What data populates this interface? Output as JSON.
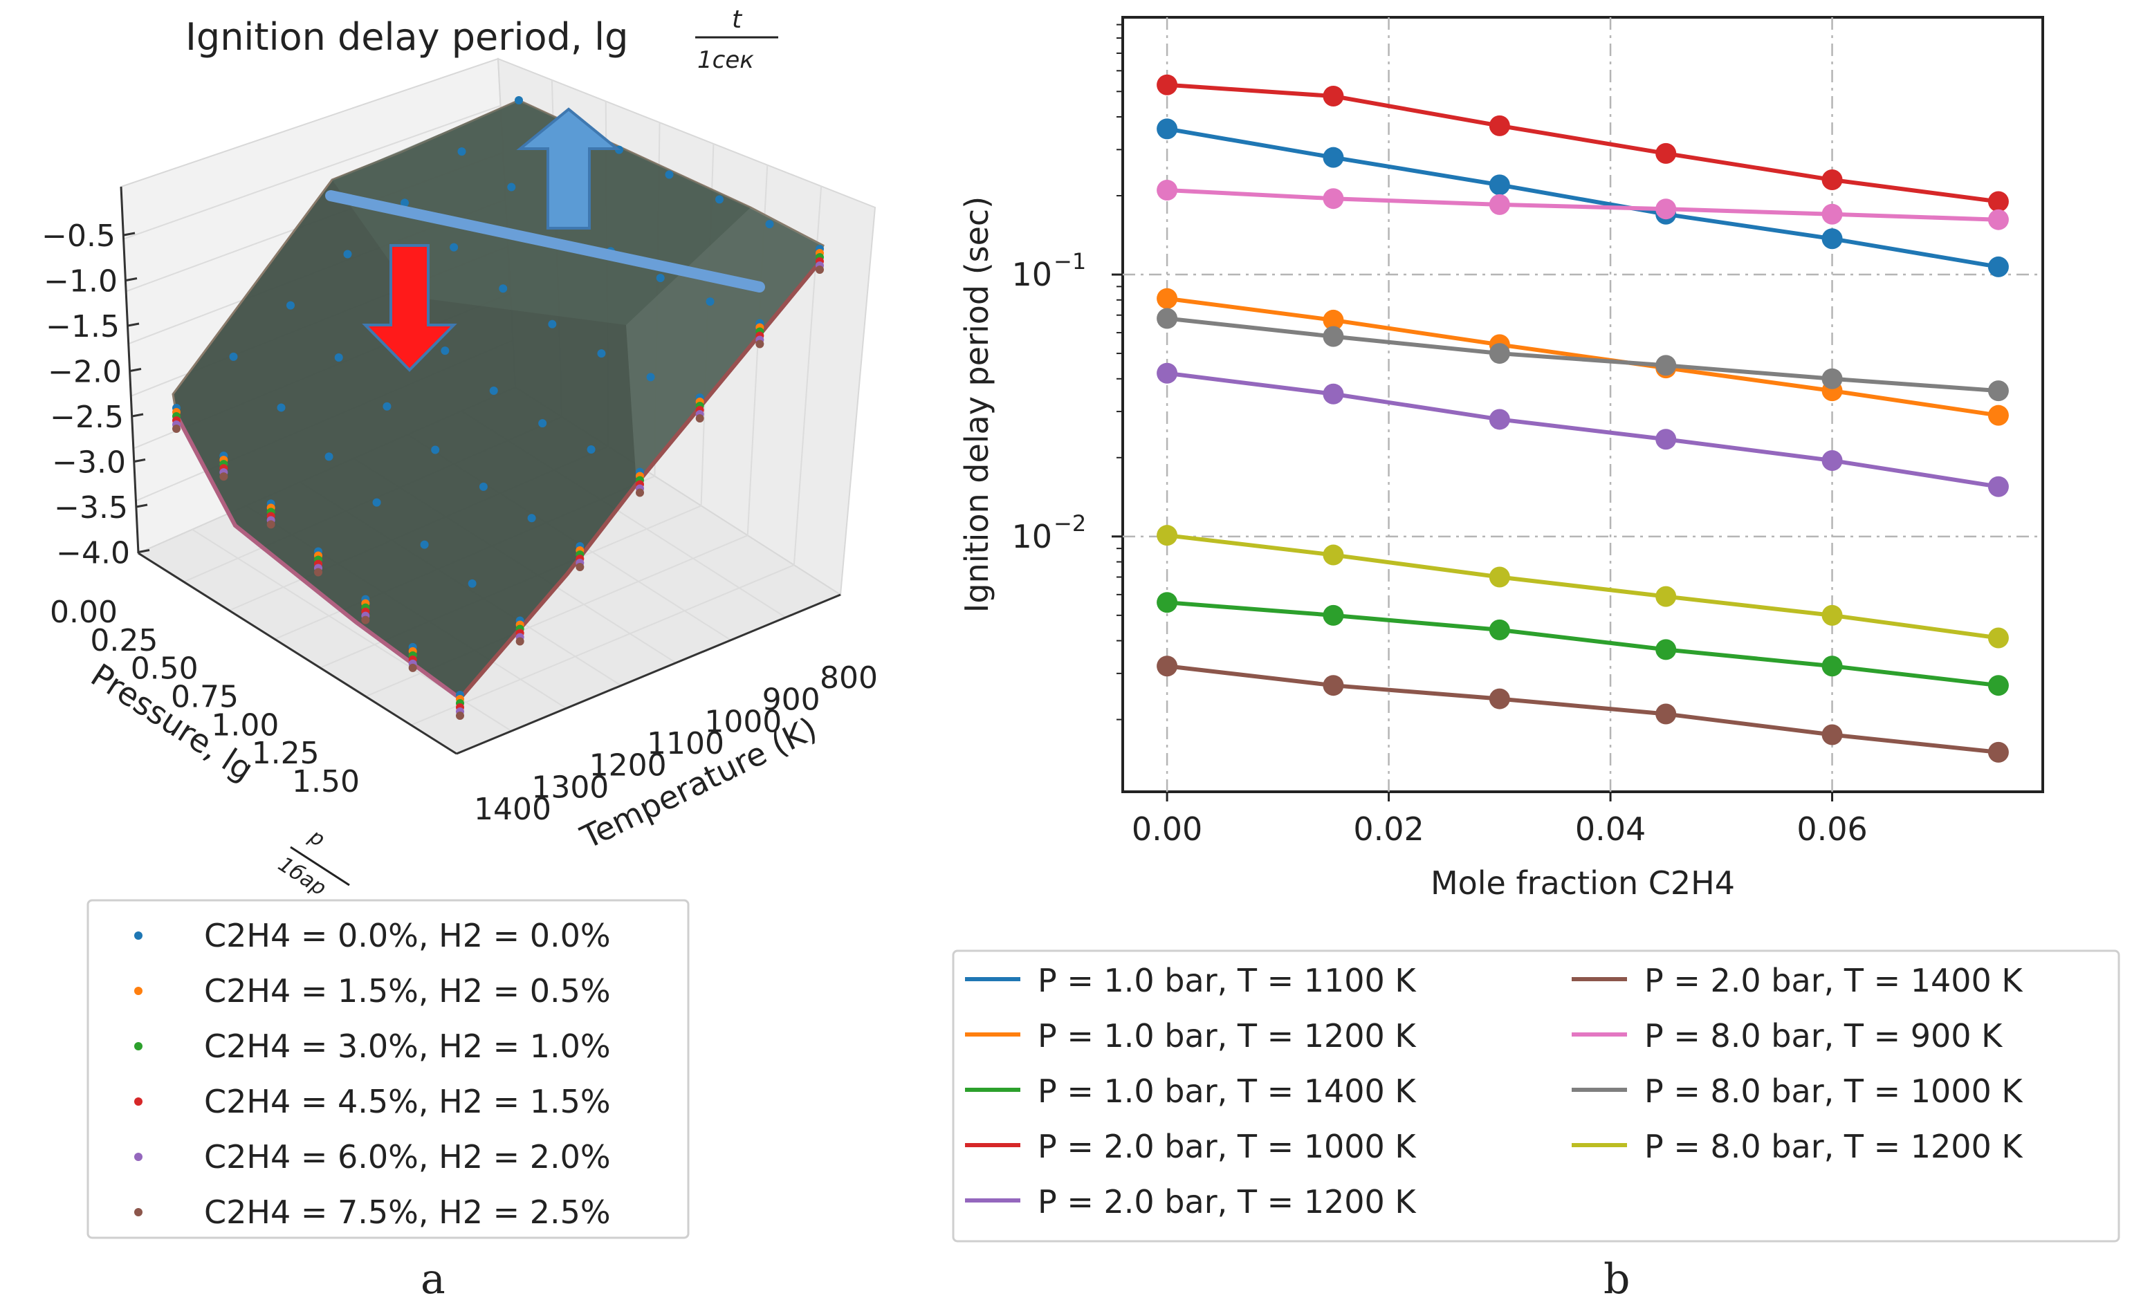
{
  "panel_labels": {
    "a": "a",
    "b": "b"
  },
  "chart_data": [
    {
      "type": "scatter",
      "projection": "3d-surface",
      "title": "Ignition delay period, lg",
      "title_fraction": {
        "numerator": "t",
        "denominator": "1сек"
      },
      "xlabel": "Pressure, lg",
      "xlabel_fraction": {
        "numerator": "p",
        "denominator": "1бар"
      },
      "ylabel": "Temperature (K)",
      "z_ticks": [
        "−0.5",
        "−1.0",
        "−1.5",
        "−2.0",
        "−2.5",
        "−3.0",
        "−3.5",
        "−4.0"
      ],
      "pressure_ticks": [
        "0.00",
        "0.25",
        "0.50",
        "0.75",
        "1.00",
        "1.25",
        "1.50"
      ],
      "temperature_ticks": [
        "800",
        "900",
        "1000",
        "1100",
        "1200",
        "1300",
        "1400"
      ],
      "pressure_values": [
        0.0,
        0.25,
        0.5,
        0.75,
        1.0,
        1.25,
        1.5
      ],
      "temperature_values": [
        800,
        900,
        1000,
        1100,
        1200,
        1300,
        1400
      ],
      "zlim": [
        -4.0,
        -0.5
      ],
      "series": [
        {
          "name": "C2H4 = 0.0%, H2 = 0.0%",
          "color": "#1f77b4"
        },
        {
          "name": "C2H4 = 1.5%, H2 = 0.5%",
          "color": "#ff7f0e"
        },
        {
          "name": "C2H4 = 3.0%, H2 = 1.0%",
          "color": "#2ca02c"
        },
        {
          "name": "C2H4 = 4.5%, H2 = 1.5%",
          "color": "#d62728"
        },
        {
          "name": "C2H4 = 6.0%, H2 = 2.0%",
          "color": "#9467bd"
        },
        {
          "name": "C2H4 = 7.5%, H2 =  2.5%",
          "color": "#8c564b"
        }
      ],
      "annotations": [
        {
          "kind": "line",
          "color": "#6a9fd8"
        },
        {
          "kind": "arrow-up",
          "color": "#5b9bd5"
        },
        {
          "kind": "arrow-down",
          "color": "#ff1a1a"
        }
      ]
    },
    {
      "type": "line",
      "xlabel": "Mole fraction C2H4",
      "ylabel": "Ignition delay period (sec)",
      "yscale": "log",
      "xlim": [
        -0.004,
        0.079
      ],
      "ylim": [
        0.00106,
        0.96
      ],
      "x": [
        0.0,
        0.015,
        0.03,
        0.045,
        0.06,
        0.075
      ],
      "x_ticks": [
        "0.00",
        "0.02",
        "0.04",
        "0.06"
      ],
      "x_tick_values": [
        0.0,
        0.02,
        0.04,
        0.06
      ],
      "y_ticks": [
        {
          "value": 0.1,
          "base": "10",
          "exp": "−1"
        },
        {
          "value": 0.01,
          "base": "10",
          "exp": "−2"
        }
      ],
      "grid": true,
      "series": [
        {
          "name": "P = 1.0 bar, T = 1100 K",
          "color": "#1f77b4",
          "values": [
            0.36,
            0.28,
            0.22,
            0.17,
            0.137,
            0.107
          ]
        },
        {
          "name": "P = 1.0 bar, T = 1200 K",
          "color": "#ff7f0e",
          "values": [
            0.081,
            0.067,
            0.054,
            0.044,
            0.036,
            0.029
          ]
        },
        {
          "name": "P = 1.0 bar, T = 1400 K",
          "color": "#2ca02c",
          "values": [
            0.0056,
            0.005,
            0.0044,
            0.0037,
            0.0032,
            0.0027
          ]
        },
        {
          "name": "P = 2.0 bar, T = 1000 K",
          "color": "#d62728",
          "values": [
            0.53,
            0.48,
            0.37,
            0.29,
            0.23,
            0.19
          ]
        },
        {
          "name": "P = 2.0 bar, T = 1200 K",
          "color": "#9467bd",
          "values": [
            0.042,
            0.035,
            0.028,
            0.0235,
            0.0195,
            0.0155
          ]
        },
        {
          "name": "P = 2.0 bar, T = 1400 K",
          "color": "#8c564b",
          "values": [
            0.0032,
            0.0027,
            0.0024,
            0.0021,
            0.00175,
            0.0015
          ]
        },
        {
          "name": "P = 8.0 bar, T = 900 K",
          "color": "#e377c2",
          "values": [
            0.21,
            0.195,
            0.185,
            0.178,
            0.17,
            0.162
          ]
        },
        {
          "name": "P = 8.0 bar, T = 1000 K",
          "color": "#7f7f7f",
          "values": [
            0.068,
            0.058,
            0.05,
            0.045,
            0.04,
            0.036
          ]
        },
        {
          "name": "P = 8.0 bar, T = 1200 K",
          "color": "#bcbd22",
          "values": [
            0.0101,
            0.0085,
            0.007,
            0.0059,
            0.005,
            0.0041
          ]
        }
      ]
    }
  ]
}
